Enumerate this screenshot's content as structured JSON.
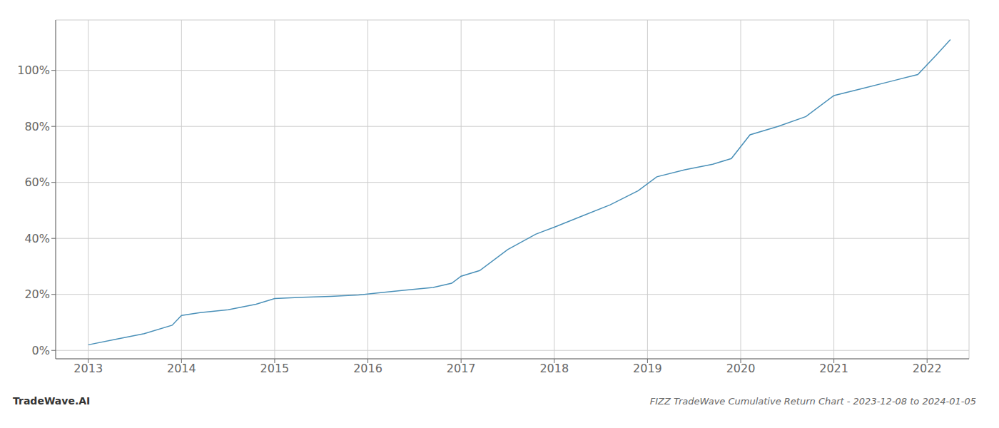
{
  "chart_data": {
    "type": "line",
    "title": "FIZZ TradeWave Cumulative Return Chart - 2023-12-08 to 2024-01-05",
    "annotations": [
      "TradeWave.AI"
    ],
    "x": [
      2013.0,
      2013.3,
      2013.6,
      2013.9,
      2014.0,
      2014.2,
      2014.5,
      2014.8,
      2015.0,
      2015.3,
      2015.6,
      2015.9,
      2016.1,
      2016.4,
      2016.7,
      2016.9,
      2017.0,
      2017.2,
      2017.5,
      2017.8,
      2018.0,
      2018.3,
      2018.6,
      2018.9,
      2019.1,
      2019.4,
      2019.7,
      2019.9,
      2020.1,
      2020.4,
      2020.7,
      2021.0,
      2021.3,
      2021.6,
      2021.9,
      2022.1,
      2022.25
    ],
    "values": [
      0.02,
      0.04,
      0.06,
      0.09,
      0.125,
      0.135,
      0.145,
      0.165,
      0.185,
      0.19,
      0.193,
      0.198,
      0.205,
      0.215,
      0.225,
      0.24,
      0.265,
      0.285,
      0.36,
      0.415,
      0.44,
      0.48,
      0.52,
      0.57,
      0.62,
      0.645,
      0.665,
      0.685,
      0.77,
      0.8,
      0.835,
      0.91,
      0.935,
      0.96,
      0.985,
      1.055,
      1.11
    ],
    "color": "#4a90b8",
    "xlim": [
      2012.65,
      2022.45
    ],
    "ylim": [
      -0.03,
      1.18
    ],
    "xticks": [
      2013,
      2014,
      2015,
      2016,
      2017,
      2018,
      2019,
      2020,
      2021,
      2022
    ],
    "yticks": [
      {
        "value": 0.0,
        "label": "0%"
      },
      {
        "value": 0.2,
        "label": "20%"
      },
      {
        "value": 0.4,
        "label": "40%"
      },
      {
        "value": 0.6,
        "label": "60%"
      },
      {
        "value": 0.8,
        "label": "80%"
      },
      {
        "value": 1.0,
        "label": "100%"
      }
    ],
    "grid": true
  }
}
